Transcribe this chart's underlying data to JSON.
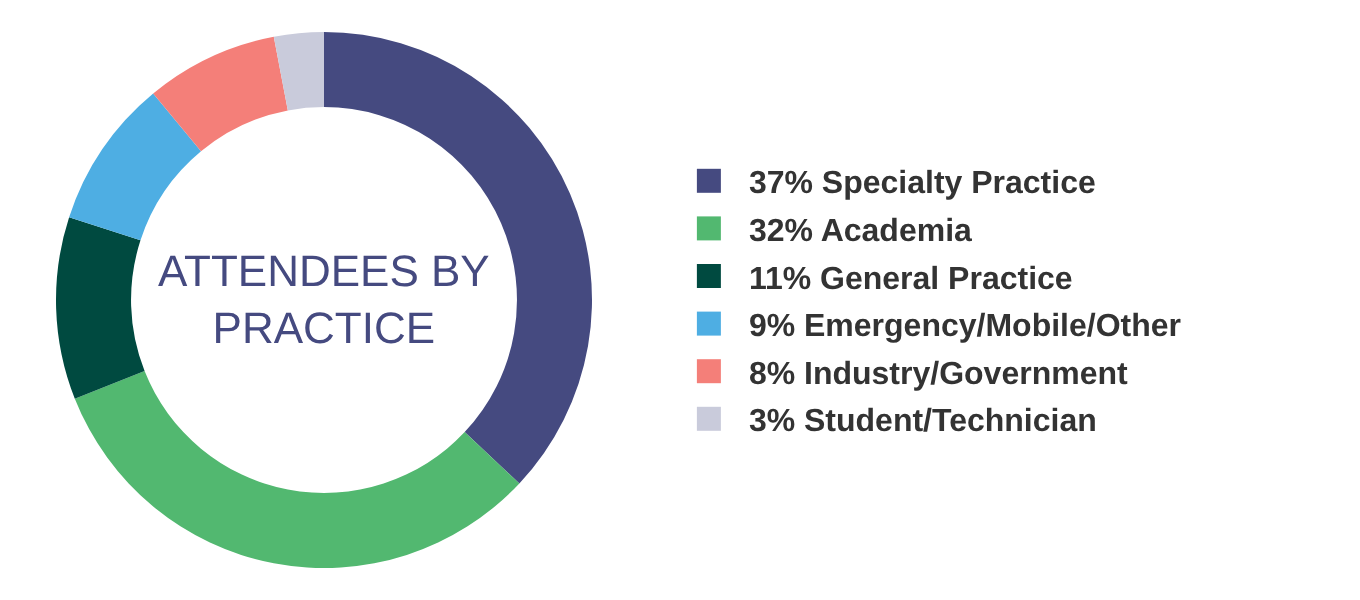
{
  "chart_data": {
    "type": "donut",
    "title": "ATTENDEES BY PRACTICE",
    "categories": [
      "37% Specialty Practice",
      "32% Academia",
      "11% General Practice",
      "9% Emergency/Mobile/Other",
      "8% Industry/Government",
      "3% Student/Technician"
    ],
    "values": [
      37,
      32,
      11,
      9,
      8,
      3
    ],
    "colors": [
      "#454a80",
      "#52b870",
      "#004a40",
      "#4eaee3",
      "#f47f79",
      "#c9cbdb"
    ],
    "legend": "right"
  }
}
